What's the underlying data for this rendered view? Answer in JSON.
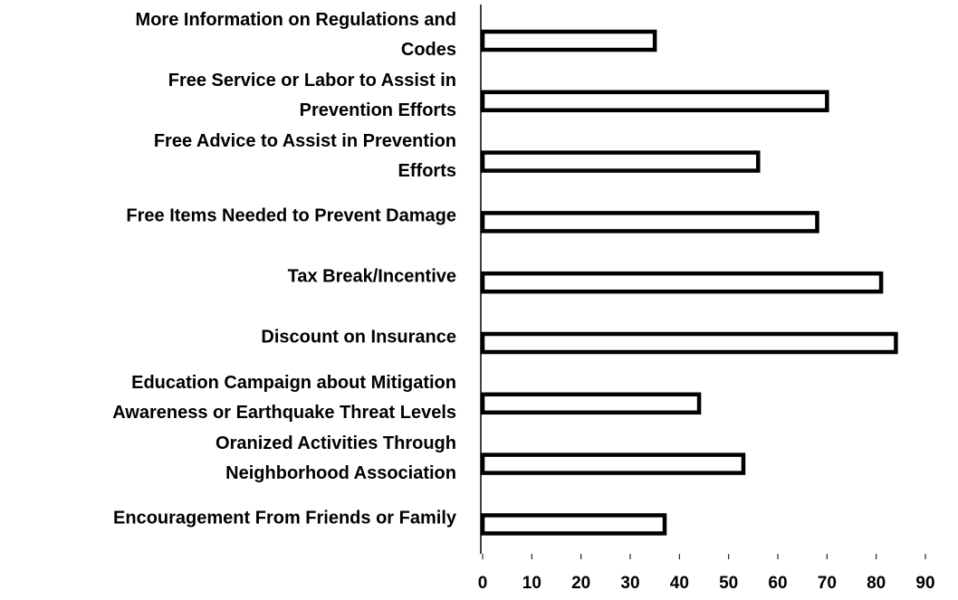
{
  "chart_data": {
    "type": "hbar",
    "categories": [
      "More Information on Regulations and\nCodes",
      "Free Service or Labor to Assist in\nPrevention Efforts",
      "Free Advice to Assist in Prevention\nEfforts",
      "Free Items Needed to Prevent Damage",
      "Tax Break/Incentive",
      "Discount on Insurance",
      "Education Campaign about Mitigation\nAwareness or Earthquake Threat Levels",
      "Oranized Activities Through\nNeighborhood Association",
      "Encouragement From Friends or Family"
    ],
    "values": [
      35,
      70,
      56,
      68,
      81,
      84,
      44,
      53,
      37
    ],
    "color": "#ffffff",
    "xlim": [
      0,
      90
    ],
    "xticks": [
      0,
      10,
      20,
      30,
      40,
      50,
      60,
      70,
      80,
      90
    ]
  }
}
